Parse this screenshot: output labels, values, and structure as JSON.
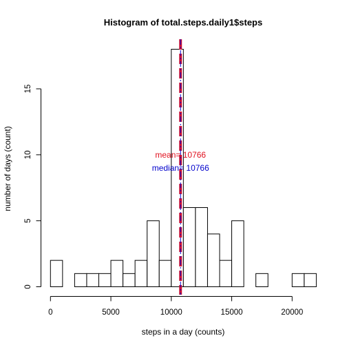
{
  "chart_data": {
    "type": "bar",
    "title": "Histogram of total.steps.daily1$steps",
    "xlabel": "steps in a day (counts)",
    "ylabel": "number of days (count)",
    "xlim": [
      0,
      22000
    ],
    "ylim": [
      0,
      18
    ],
    "bin_width": 1000,
    "bin_starts": [
      0,
      1000,
      2000,
      3000,
      4000,
      5000,
      6000,
      7000,
      8000,
      9000,
      10000,
      11000,
      12000,
      13000,
      14000,
      15000,
      16000,
      17000,
      18000,
      19000,
      20000,
      21000
    ],
    "values": [
      2,
      0,
      1,
      1,
      1,
      2,
      1,
      2,
      5,
      2,
      18,
      6,
      6,
      4,
      2,
      5,
      0,
      1,
      0,
      0,
      1,
      1
    ],
    "x_ticks": [
      0,
      5000,
      10000,
      15000,
      20000
    ],
    "y_ticks": [
      0,
      5,
      10,
      15
    ],
    "x_tick_labels": [
      "0",
      "5000",
      "10000",
      "15000",
      "20000"
    ],
    "y_tick_labels": [
      "0",
      "5",
      "10",
      "15"
    ],
    "grid": false,
    "bar_fill": "#ffffff",
    "bar_stroke": "#000000",
    "lines": [
      {
        "name": "mean",
        "value": 10766,
        "color": "#cc1133",
        "style": "dashed-thick"
      },
      {
        "name": "median",
        "value": 10766,
        "color": "#0000cc",
        "style": "dotdash-thin"
      }
    ],
    "annotations": [
      {
        "text": "mean= 10766",
        "color": "#e0101e",
        "x": 10766,
        "y": 10
      },
      {
        "text": "median= 10766",
        "color": "#0000cc",
        "x": 10766,
        "y": 9
      }
    ]
  }
}
